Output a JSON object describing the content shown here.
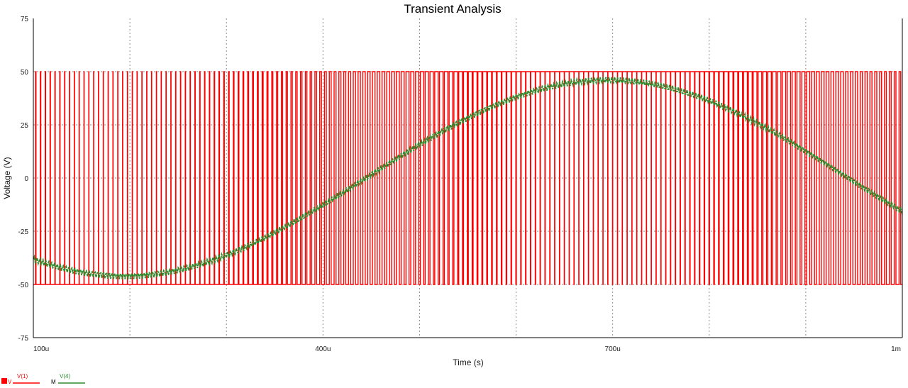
{
  "chart_data": {
    "type": "line",
    "title": "Transient Analysis",
    "xlabel": "Time (s)",
    "ylabel": "Voltage (V)",
    "xlim": [
      0.0001,
      0.001
    ],
    "ylim": [
      -75,
      75
    ],
    "grid": true,
    "x_ticks": [
      0.0001,
      0.0004,
      0.0007,
      0.001
    ],
    "x_tick_labels": [
      "100u",
      "400u",
      "700u",
      "1m"
    ],
    "y_ticks": [
      75,
      50,
      25,
      0,
      -25,
      -50,
      -75
    ],
    "y_tick_labels": [
      "75",
      "50",
      "25",
      "0",
      "-25",
      "-50",
      "-75"
    ],
    "legend_position": "bottom-left",
    "series": [
      {
        "name": "V(1)",
        "color": "#ff0000",
        "kind": "pwm",
        "high": 50,
        "low": -50,
        "carrier_periods": 180,
        "modulating_amplitude": 0.95,
        "modulating_frequency_hz": 1000,
        "modulating_phase_deg": 200
      },
      {
        "name": "V(4)",
        "color": "#2e8b2e",
        "kind": "sine",
        "amplitude": 46,
        "offset": 0,
        "frequency_hz": 1000,
        "phase_deg": 200,
        "ripple": 1.5
      }
    ],
    "legend": [
      {
        "marker": "V",
        "label": "V(1)",
        "color": "#ff0000"
      },
      {
        "marker": "M",
        "label": "V(4)",
        "color": "#2e8b2e"
      }
    ]
  }
}
